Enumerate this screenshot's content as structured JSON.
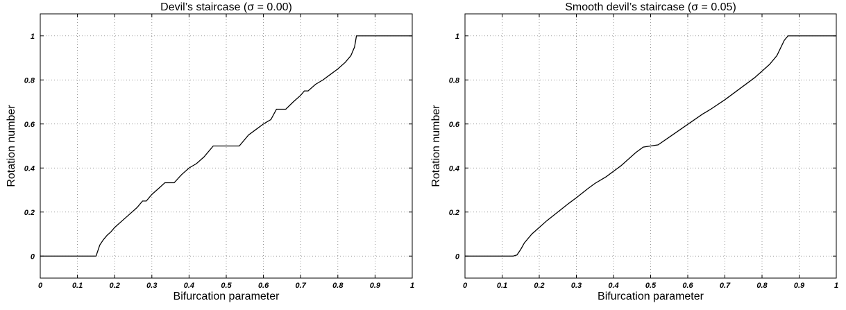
{
  "chart_data": [
    {
      "type": "line",
      "title": "Devil’s staircase (σ =  0.00)",
      "xlabel": "Bifurcation parameter",
      "ylabel": "Rotation number",
      "xlim": [
        0,
        1
      ],
      "ylim": [
        -0.1,
        1.1
      ],
      "xticks": [
        "0",
        "0.1",
        "0.2",
        "0.3",
        "0.4",
        "0.5",
        "0.6",
        "0.7",
        "0.8",
        "0.9",
        "1"
      ],
      "yticks": [
        "0",
        "0.2",
        "0.4",
        "0.6",
        "0.8",
        "1"
      ],
      "grid": true,
      "series": [
        {
          "x": [
            0,
            0.15,
            0.152,
            0.16,
            0.17,
            0.18,
            0.19,
            0.2,
            0.22,
            0.24,
            0.26,
            0.275,
            0.285,
            0.3,
            0.32,
            0.335,
            0.36,
            0.38,
            0.4,
            0.42,
            0.44,
            0.465,
            0.535,
            0.56,
            0.58,
            0.6,
            0.62,
            0.635,
            0.66,
            0.68,
            0.7,
            0.71,
            0.72,
            0.74,
            0.76,
            0.78,
            0.8,
            0.82,
            0.835,
            0.845,
            0.85,
            1
          ],
          "y": [
            0,
            0,
            0.01,
            0.05,
            0.075,
            0.095,
            0.11,
            0.13,
            0.16,
            0.19,
            0.22,
            0.25,
            0.25,
            0.28,
            0.31,
            0.333,
            0.333,
            0.37,
            0.4,
            0.42,
            0.45,
            0.5,
            0.5,
            0.55,
            0.575,
            0.6,
            0.62,
            0.667,
            0.667,
            0.7,
            0.73,
            0.75,
            0.75,
            0.78,
            0.8,
            0.825,
            0.85,
            0.88,
            0.91,
            0.95,
            1.0,
            1.0
          ]
        }
      ]
    },
    {
      "type": "line",
      "title": "Smooth devil’s staircase (σ =  0.05)",
      "xlabel": "Bifurcation parameter",
      "ylabel": "Rotation number",
      "xlim": [
        0,
        1
      ],
      "ylim": [
        -0.1,
        1.1
      ],
      "xticks": [
        "0",
        "0.1",
        "0.2",
        "0.3",
        "0.4",
        "0.5",
        "0.6",
        "0.7",
        "0.8",
        "0.9",
        "1"
      ],
      "yticks": [
        "0",
        "0.2",
        "0.4",
        "0.6",
        "0.8",
        "1"
      ],
      "grid": true,
      "series": [
        {
          "x": [
            0,
            0.13,
            0.14,
            0.15,
            0.16,
            0.18,
            0.2,
            0.22,
            0.25,
            0.28,
            0.3,
            0.33,
            0.35,
            0.38,
            0.42,
            0.46,
            0.48,
            0.5,
            0.52,
            0.55,
            0.58,
            0.61,
            0.64,
            0.66,
            0.7,
            0.74,
            0.78,
            0.82,
            0.84,
            0.86,
            0.87,
            1
          ],
          "y": [
            0,
            0,
            0.005,
            0.03,
            0.06,
            0.1,
            0.13,
            0.16,
            0.2,
            0.24,
            0.265,
            0.305,
            0.33,
            0.36,
            0.41,
            0.47,
            0.495,
            0.5,
            0.505,
            0.54,
            0.575,
            0.61,
            0.645,
            0.665,
            0.71,
            0.76,
            0.81,
            0.87,
            0.91,
            0.98,
            1.0,
            1.0
          ]
        }
      ]
    }
  ]
}
